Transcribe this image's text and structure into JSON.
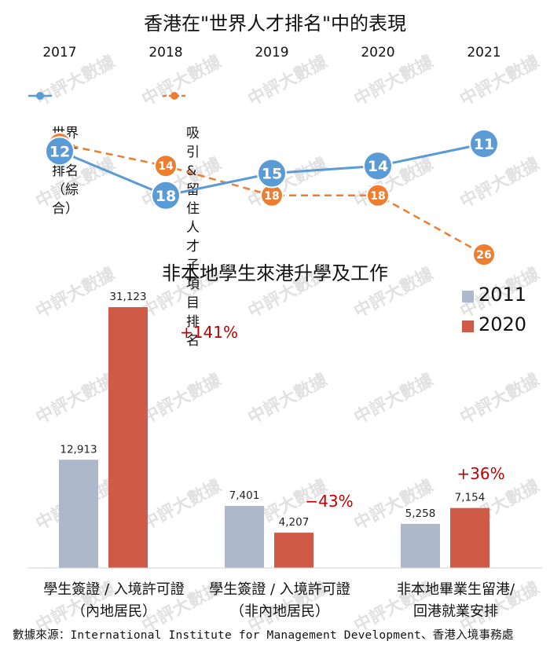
{
  "title_top": "香港在\"世界人才排名\"中的表現",
  "title_bottom": "非本地學生來港升學及工作",
  "source": "數據來源：International Institute for Management Development、香港入境事務處",
  "watermark": "中評大數據",
  "colors": {
    "blue": "#5b9bd5",
    "orange": "#ed7d31",
    "gray_bar": "#adb9ca",
    "red_bar": "#d05a48",
    "delta": "#c00000"
  },
  "chart_data": [
    {
      "type": "line",
      "title": "香港在\"世界人才排名\"中的表現",
      "x": [
        "2017",
        "2018",
        "2019",
        "2020",
        "2021"
      ],
      "series": [
        {
          "name": "世界人才排名\n（綜合）",
          "values": [
            12,
            18,
            15,
            14,
            11
          ],
          "color": "#5b9bd5",
          "style": "solid"
        },
        {
          "name": "吸引&留住人才\n子項目排名",
          "values": [
            11,
            14,
            18,
            18,
            26
          ],
          "color": "#ed7d31",
          "style": "dashed"
        }
      ],
      "y_scale": "inverted rank",
      "grid": false,
      "legend": "top-left"
    },
    {
      "type": "bar",
      "title": "非本地學生來港升學及工作",
      "categories": [
        "學生簽證 / 入境許可證\n（內地居民）",
        "學生簽證 / 入境許可證\n（非內地居民）",
        "非本地畢業生留港/\n回港就業安排"
      ],
      "series": [
        {
          "name": "2011",
          "values": [
            12913,
            7401,
            5258
          ],
          "labels": [
            "12,913",
            "7,401",
            "5,258"
          ],
          "color": "#adb9ca"
        },
        {
          "name": "2020",
          "values": [
            31123,
            4207,
            7154
          ],
          "labels": [
            "31,123",
            "4,207",
            "7,154"
          ],
          "color": "#d05a48"
        }
      ],
      "annotations": [
        "+141%",
        "−43%",
        "+36%"
      ],
      "grid": false,
      "legend": "top-right"
    }
  ]
}
